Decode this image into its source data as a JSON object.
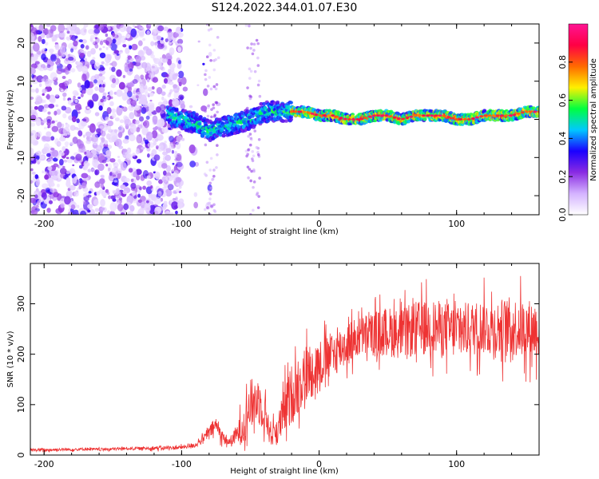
{
  "figure": {
    "title": "S124.2022.344.01.07.E30"
  },
  "chart_data": [
    {
      "type": "heatmap",
      "name": "spectrogram",
      "xlabel": "Height of straight line (km)",
      "ylabel": "Frequency (Hz)",
      "xlim": [
        -210,
        160
      ],
      "ylim": [
        -25,
        25
      ],
      "xticks": [
        -200,
        -100,
        0,
        100
      ],
      "yticks": [
        -20,
        -10,
        0,
        10,
        20
      ],
      "colorbar": {
        "label": "Normalized spectral amplitude",
        "range": [
          0,
          1
        ],
        "ticks": [
          0.0,
          0.2,
          0.4,
          0.6,
          0.8
        ],
        "tick_labels": [
          "0.0",
          "0.2",
          "0.4",
          "0.6",
          "0.8"
        ],
        "colormap": [
          "#ffffff",
          "#d4b3ff",
          "#8a2be2",
          "#1a00ff",
          "#00c8ff",
          "#00ff40",
          "#fff000",
          "#ff6a00",
          "#ff0044",
          "#ff1493"
        ]
      },
      "ridge_frequency": {
        "x": [
          -110,
          -100,
          -90,
          -80,
          -70,
          -60,
          -50,
          -40,
          -30,
          -20,
          -10,
          0,
          10,
          20,
          30,
          40,
          50,
          60,
          70,
          80,
          90,
          100,
          110,
          120,
          130,
          140,
          150,
          160
        ],
        "y": [
          1,
          0,
          -1,
          -3,
          -2,
          -1,
          0,
          2,
          2,
          2,
          2,
          1,
          1,
          0,
          0,
          1,
          1,
          0,
          1,
          1,
          1,
          0,
          0,
          1,
          1,
          1,
          2,
          2
        ]
      }
    },
    {
      "type": "line",
      "name": "snr",
      "xlabel": "Height of straight line (km)",
      "ylabel": "SNR (10 * v/v)",
      "xlim": [
        -210,
        160
      ],
      "ylim": [
        0,
        380
      ],
      "xticks": [
        -200,
        -100,
        0,
        100
      ],
      "yticks": [
        0,
        100,
        200,
        300
      ],
      "color": "#ee3333",
      "series": [
        {
          "name": "SNR",
          "x": [
            -210,
            -200,
            -190,
            -180,
            -170,
            -160,
            -150,
            -140,
            -130,
            -120,
            -110,
            -100,
            -95,
            -90,
            -85,
            -80,
            -75,
            -70,
            -65,
            -60,
            -55,
            -50,
            -45,
            -40,
            -35,
            -30,
            -25,
            -20,
            -15,
            -10,
            -5,
            0,
            10,
            20,
            30,
            40,
            50,
            60,
            70,
            80,
            90,
            100,
            110,
            120,
            130,
            140,
            150,
            160
          ],
          "y": [
            10,
            10,
            11,
            11,
            12,
            11,
            12,
            13,
            13,
            14,
            14,
            15,
            18,
            20,
            30,
            45,
            60,
            35,
            25,
            40,
            60,
            100,
            110,
            90,
            40,
            50,
            90,
            120,
            140,
            160,
            170,
            180,
            200,
            220,
            235,
            240,
            245,
            240,
            250,
            255,
            250,
            245,
            250,
            255,
            250,
            255,
            250,
            250
          ],
          "spread": [
            3,
            3,
            3,
            3,
            3,
            3,
            3,
            3,
            3,
            4,
            4,
            4,
            5,
            5,
            8,
            12,
            18,
            12,
            10,
            20,
            40,
            50,
            50,
            40,
            25,
            30,
            50,
            60,
            60,
            60,
            55,
            50,
            45,
            45,
            40,
            45,
            50,
            50,
            55,
            55,
            55,
            55,
            55,
            55,
            60,
            60,
            60,
            60
          ]
        }
      ]
    }
  ]
}
